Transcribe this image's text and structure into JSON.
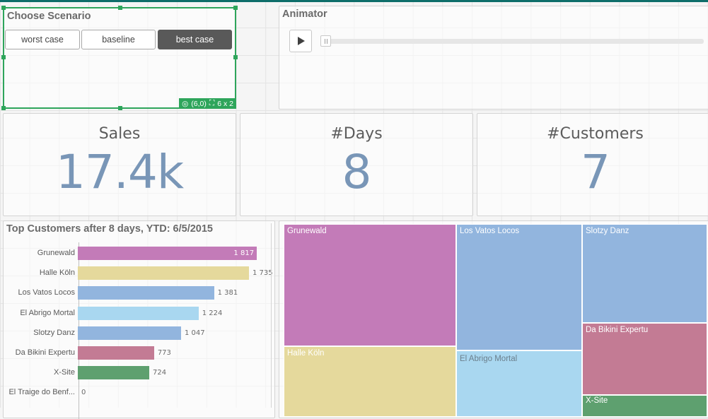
{
  "scenario": {
    "title": "Choose Scenario",
    "buttons": [
      {
        "label": "worst case",
        "active": false
      },
      {
        "label": "baseline",
        "active": false
      },
      {
        "label": "best case",
        "active": true
      }
    ],
    "badge": {
      "position": "(6,0)",
      "size": "6 x 2"
    }
  },
  "animator": {
    "title": "Animator"
  },
  "kpis": [
    {
      "label": "Sales",
      "value": "17.4k"
    },
    {
      "label": "#Days",
      "value": "8"
    },
    {
      "label": "#Customers",
      "value": "7"
    }
  ],
  "chart_data": {
    "type": "bar",
    "orientation": "horizontal",
    "title": "Top Customers after 8 days, YTD: 6/5/2015",
    "categories": [
      "Grunewald",
      "Halle Köln",
      "Los Vatos Locos",
      "El Abrigo Mortal",
      "Slotzy Danz",
      "Da Bikini Expertu",
      "X-Site",
      "El Traige do Benf..."
    ],
    "values": [
      1817,
      1735,
      1381,
      1224,
      1047,
      773,
      724,
      0
    ],
    "value_labels": [
      "1 817",
      "1 735",
      "1 381",
      "1 224",
      "1 047",
      "773",
      "724",
      "0"
    ],
    "colors": [
      "#c37bb8",
      "#e5d99c",
      "#92b5de",
      "#a9d7f0",
      "#92b5de",
      "#c37b94",
      "#5ea06f",
      "#cccccc"
    ],
    "xlim": [
      0,
      1900
    ]
  },
  "treemap": {
    "tiles": [
      {
        "label": "Grunewald",
        "color": "#c37bb8",
        "text_color": "#ffffff"
      },
      {
        "label": "Halle Köln",
        "color": "#e5d99c",
        "text_color": "#ffffff"
      },
      {
        "label": "Los Vatos Locos",
        "color": "#92b5de",
        "text_color": "#ffffff"
      },
      {
        "label": "El Abrigo Mortal",
        "color": "#a9d7f0",
        "text_color": "#6b7f8c"
      },
      {
        "label": "Slotzy Danz",
        "color": "#92b5de",
        "text_color": "#ffffff"
      },
      {
        "label": "Da Bikini Expertu",
        "color": "#c37b94",
        "text_color": "#ffffff"
      },
      {
        "label": "X-Site",
        "color": "#5ea06f",
        "text_color": "#ffffff"
      }
    ]
  },
  "colors": {
    "accent": "#2ea55b",
    "kpi_value": "#7996b7",
    "header": "#0e6e6a"
  }
}
